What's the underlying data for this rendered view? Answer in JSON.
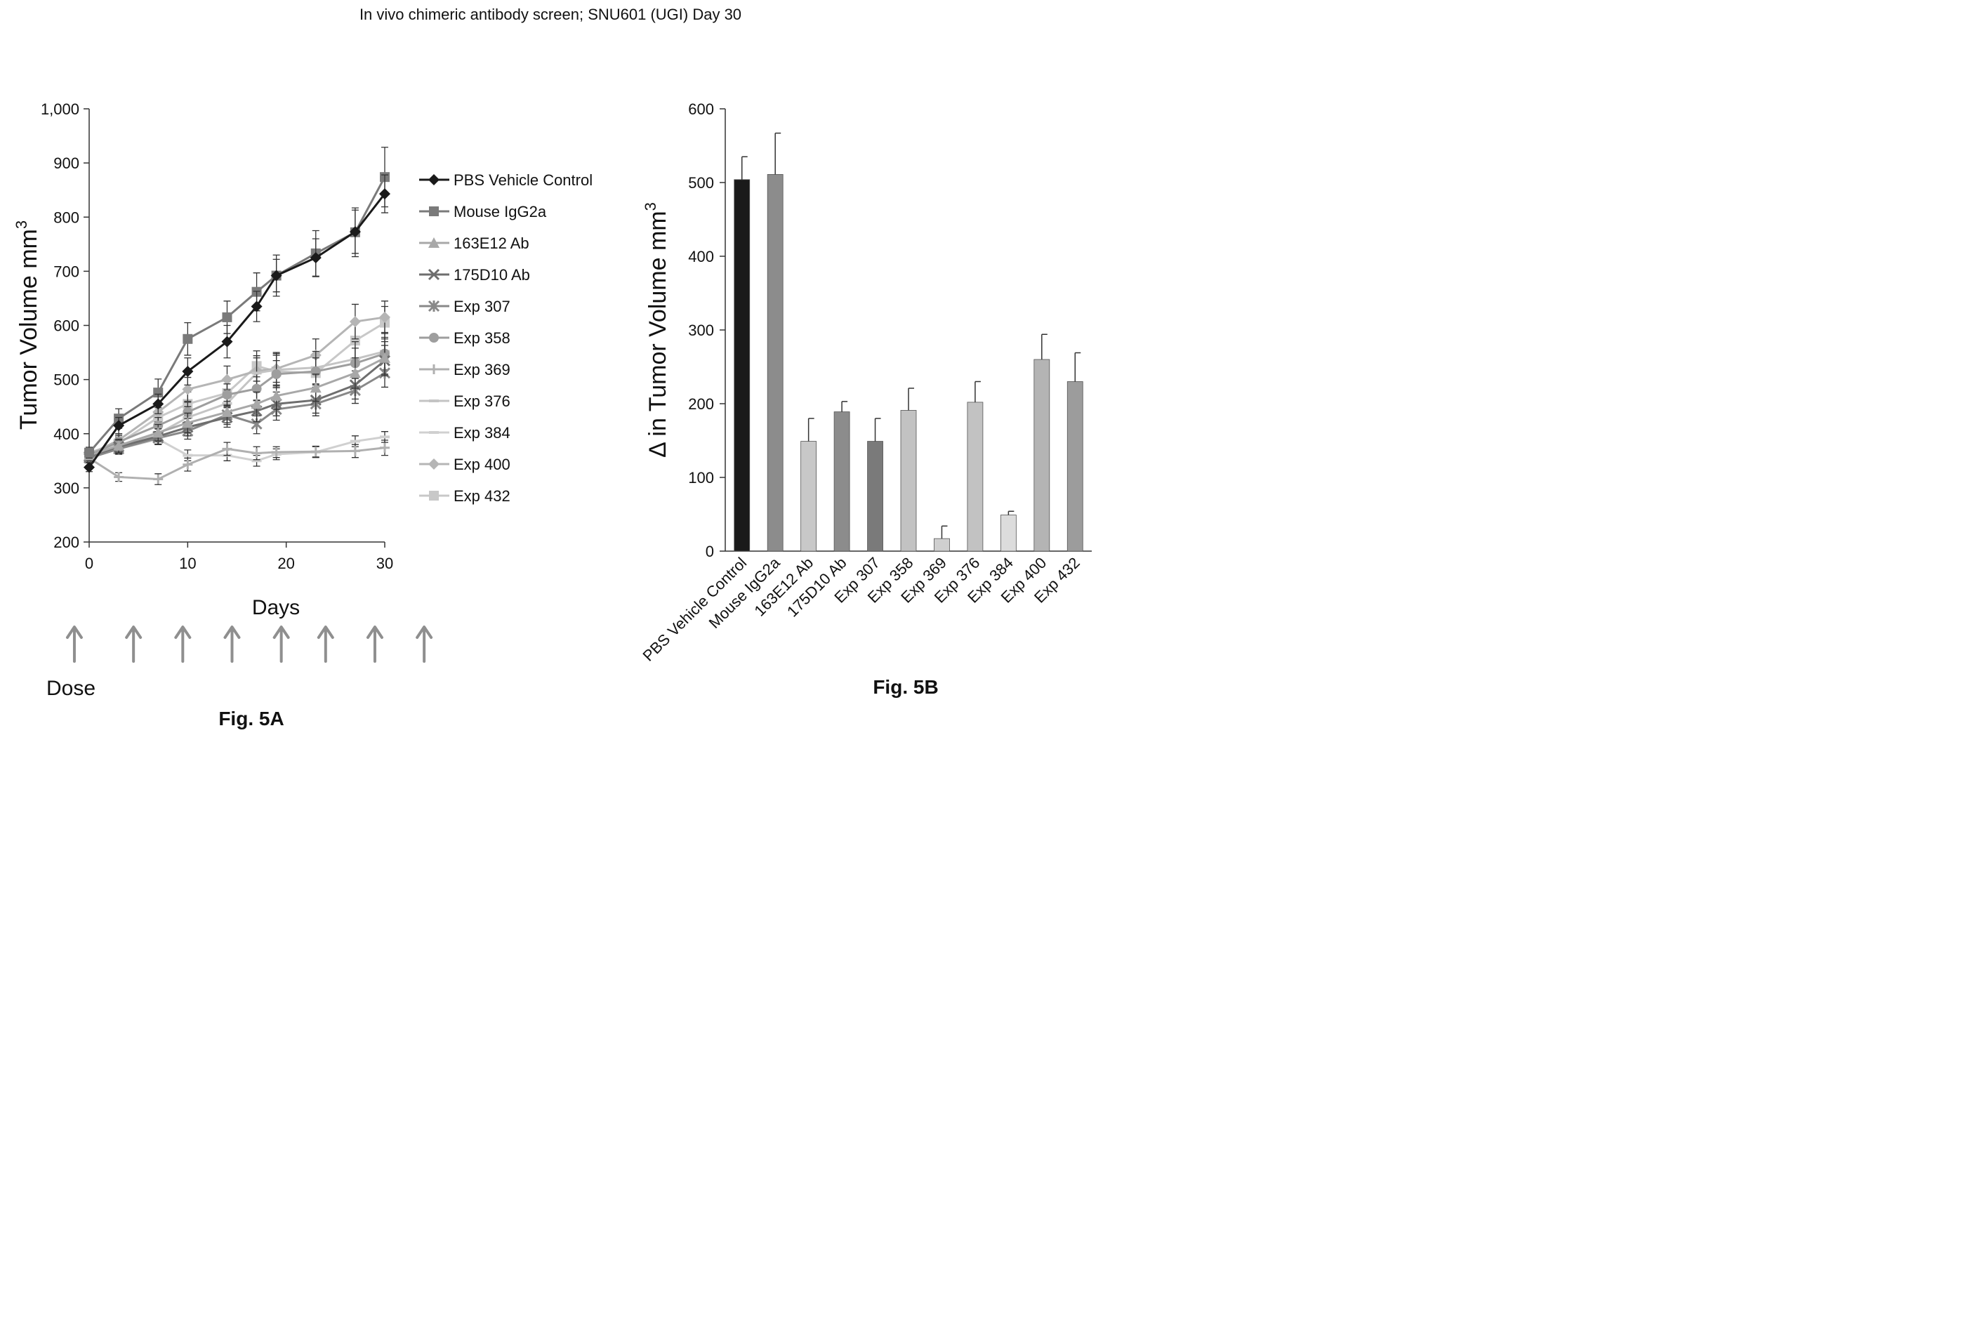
{
  "page_title": "In vivo chimeric antibody screen; SNU601 (UGI) Day 30",
  "chart_data": [
    {
      "figure_label": "Fig. 5A",
      "type": "line",
      "ylabel": "Tumor Volume mm",
      "ylabel_superscript": "3",
      "xlabel": "Days",
      "xlim": [
        0,
        30
      ],
      "ylim": [
        200,
        1000
      ],
      "x_ticks": [
        0,
        10,
        20,
        30
      ],
      "x_tick_labels": [
        "0",
        "10",
        "20",
        "30"
      ],
      "y_ticks": [
        200,
        300,
        400,
        500,
        600,
        700,
        800,
        900,
        1000
      ],
      "y_tick_labels": [
        "200",
        "300",
        "400",
        "500",
        "600",
        "700",
        "800",
        "900",
        "1,000"
      ],
      "grid": false,
      "legend_position": "right",
      "x": [
        0,
        3,
        7,
        10,
        14,
        17,
        19,
        23,
        27,
        30
      ],
      "series": [
        {
          "name": "PBS Vehicle Control",
          "marker": "diamond",
          "color": "#1a1a1a",
          "values": [
            338,
            415,
            455,
            515,
            570,
            635,
            692,
            725,
            773,
            843
          ],
          "errors": [
            8,
            15,
            18,
            25,
            30,
            28,
            30,
            35,
            40,
            35
          ]
        },
        {
          "name": "Mouse IgG2a",
          "marker": "square",
          "color": "#7a7a7a",
          "values": [
            365,
            428,
            476,
            575,
            615,
            662,
            692,
            733,
            772,
            874
          ],
          "errors": [
            10,
            18,
            25,
            30,
            30,
            35,
            38,
            42,
            45,
            55
          ]
        },
        {
          "name": "163E12 Ab",
          "marker": "triangle",
          "color": "#a8a8a8",
          "values": [
            360,
            378,
            402,
            420,
            440,
            455,
            470,
            485,
            512,
            540
          ],
          "errors": [
            8,
            12,
            15,
            18,
            20,
            22,
            25,
            25,
            28,
            30
          ]
        },
        {
          "name": "175D10 Ab",
          "marker": "x",
          "color": "#6e6e6e",
          "values": [
            358,
            376,
            395,
            412,
            430,
            442,
            455,
            462,
            490,
            535
          ],
          "errors": [
            8,
            12,
            14,
            16,
            18,
            20,
            22,
            24,
            26,
            28
          ]
        },
        {
          "name": "Exp 307",
          "marker": "star",
          "color": "#888888",
          "values": [
            355,
            372,
            392,
            405,
            435,
            418,
            445,
            455,
            480,
            512
          ],
          "errors": [
            8,
            10,
            12,
            15,
            18,
            18,
            20,
            22,
            24,
            26
          ]
        },
        {
          "name": "Exp 358",
          "marker": "circle",
          "color": "#9e9e9e",
          "values": [
            360,
            385,
            415,
            440,
            472,
            483,
            510,
            515,
            530,
            548
          ],
          "errors": [
            8,
            12,
            15,
            18,
            20,
            22,
            25,
            25,
            28,
            30
          ]
        },
        {
          "name": "Exp 369",
          "marker": "plus",
          "color": "#b0b0b0",
          "values": [
            355,
            320,
            316,
            343,
            372,
            364,
            366,
            367,
            368,
            374
          ],
          "errors": [
            6,
            8,
            10,
            12,
            12,
            12,
            10,
            10,
            12,
            14
          ]
        },
        {
          "name": "Exp 376",
          "marker": "dash",
          "color": "#c4c4c4",
          "values": [
            360,
            375,
            400,
            430,
            456,
            512,
            518,
            522,
            538,
            552
          ],
          "errors": [
            8,
            12,
            15,
            20,
            25,
            28,
            30,
            30,
            32,
            35
          ]
        },
        {
          "name": "Exp 384",
          "marker": "dash",
          "color": "#d0d0d0",
          "values": [
            355,
            372,
            390,
            360,
            360,
            350,
            362,
            366,
            386,
            394
          ],
          "errors": [
            6,
            8,
            10,
            10,
            10,
            10,
            10,
            10,
            10,
            10
          ]
        },
        {
          "name": "Exp 400",
          "marker": "diamond",
          "color": "#b5b5b5",
          "values": [
            362,
            388,
            440,
            482,
            500,
            516,
            520,
            545,
            607,
            615
          ],
          "errors": [
            8,
            12,
            18,
            22,
            25,
            28,
            30,
            30,
            32,
            30
          ]
        },
        {
          "name": "Exp 432",
          "marker": "square",
          "color": "#c8c8c8",
          "values": [
            365,
            382,
            430,
            455,
            475,
            525,
            515,
            512,
            572,
            605
          ],
          "errors": [
            8,
            12,
            18,
            22,
            25,
            28,
            30,
            30,
            32,
            30
          ]
        }
      ],
      "dose_label": "Dose",
      "dose_days": [
        -1.5,
        4.5,
        9.5,
        14.5,
        19.5,
        24,
        29,
        34
      ]
    },
    {
      "figure_label": "Fig. 5B",
      "type": "bar",
      "ylabel": "Δ in Tumor Volume mm",
      "ylabel_superscript": "3",
      "ylim": [
        0,
        600
      ],
      "y_ticks": [
        0,
        100,
        200,
        300,
        400,
        500,
        600
      ],
      "y_tick_labels": [
        "0",
        "100",
        "200",
        "300",
        "400",
        "500",
        "600"
      ],
      "grid": false,
      "categories": [
        "PBS Vehicle Control",
        "Mouse IgG2a",
        "163E12 Ab",
        "175D10 Ab",
        "Exp 307",
        "Exp 358",
        "Exp 369",
        "Exp 376",
        "Exp 384",
        "Exp 400",
        "Exp 432"
      ],
      "values": [
        504,
        511,
        149,
        189,
        149,
        191,
        17,
        202,
        49,
        260,
        230
      ],
      "errors": [
        31,
        56,
        31,
        14,
        31,
        30,
        17,
        28,
        5,
        34,
        39
      ],
      "colors": [
        "#1a1a1a",
        "#8c8c8c",
        "#c8c8c8",
        "#8c8c8c",
        "#7a7a7a",
        "#c2c2c2",
        "#cfcfcf",
        "#c2c2c2",
        "#dcdcdc",
        "#b4b4b4",
        "#9c9c9c"
      ]
    }
  ]
}
